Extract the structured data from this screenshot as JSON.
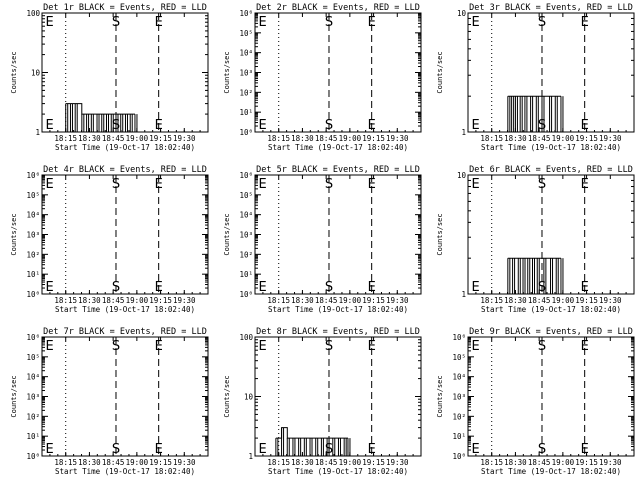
{
  "page": {
    "background": "#ffffff",
    "ink": "#000000"
  },
  "chart_data": [
    {
      "type": "line",
      "title": "Det 1r BLACK = Events, RED = LLD",
      "xlabel": "Start Time (19-Oct-17 18:02:40)",
      "ylabel": "Counts/sec",
      "ylog": true,
      "ylim": [
        1,
        100
      ],
      "yticklabels": [
        "1",
        "10",
        "100"
      ],
      "xticklabels": [
        "18:15",
        "18:30",
        "18:45",
        "19:00",
        "19:15",
        "19:30"
      ],
      "markers": [
        {
          "label": "E",
          "pos": "start"
        },
        {
          "label": "S",
          "pos": "mid"
        },
        {
          "label": "E",
          "pos": "end"
        }
      ],
      "series": [
        {
          "color": "#000000",
          "x": [
            18.25,
            18.3,
            18.35,
            18.42,
            18.47,
            18.52,
            18.58,
            18.63,
            18.68,
            18.73,
            18.78,
            18.83,
            18.88,
            18.93,
            18.98
          ],
          "y": [
            3,
            3,
            3,
            2,
            2,
            2,
            2,
            2,
            2,
            2,
            2,
            2,
            2,
            2,
            2
          ]
        }
      ]
    },
    {
      "type": "line",
      "title": "Det 2r BLACK = Events, RED = LLD",
      "xlabel": "Start Time (19-Oct-17 18:02:40)",
      "ylabel": "Counts/sec",
      "ylog": true,
      "ylim": [
        1,
        1000000
      ],
      "yticklabels": [
        "10⁰",
        "10¹",
        "10²",
        "10³",
        "10⁴",
        "10⁵",
        "10⁶"
      ],
      "xticklabels": [
        "18:15",
        "18:30",
        "18:45",
        "19:00",
        "19:15",
        "19:30"
      ],
      "markers": [
        {
          "label": "E",
          "pos": "start"
        },
        {
          "label": "S",
          "pos": "mid"
        },
        {
          "label": "E",
          "pos": "end"
        }
      ],
      "series": []
    },
    {
      "type": "line",
      "title": "Det 3r BLACK = Events, RED = LLD",
      "xlabel": "Start Time (19-Oct-17 18:02:40)",
      "ylabel": "Counts/sec",
      "ylog": true,
      "ylim": [
        1,
        10
      ],
      "yticklabels": [
        "1",
        "10"
      ],
      "xticklabels": [
        "18:15",
        "18:30",
        "18:45",
        "19:00",
        "19:15",
        "19:30"
      ],
      "markers": [
        {
          "label": "E",
          "pos": "start"
        },
        {
          "label": "S",
          "pos": "mid"
        },
        {
          "label": "E",
          "pos": "end"
        }
      ],
      "series": [
        {
          "color": "#000000",
          "x": [
            18.42,
            18.46,
            18.5,
            18.55,
            18.6,
            18.66,
            18.72,
            18.78,
            18.86,
            18.92,
            18.98
          ],
          "y": [
            2,
            2,
            2,
            2,
            2,
            2,
            2,
            2,
            2,
            2,
            2
          ]
        }
      ]
    },
    {
      "type": "line",
      "title": "Det 4r BLACK = Events, RED = LLD",
      "xlabel": "Start Time (19-Oct-17 18:02:40)",
      "ylabel": "Counts/sec",
      "ylog": true,
      "ylim": [
        1,
        1000000
      ],
      "yticklabels": [
        "10⁰",
        "10¹",
        "10²",
        "10³",
        "10⁴",
        "10⁵",
        "10⁶"
      ],
      "xticklabels": [
        "18:15",
        "18:30",
        "18:45",
        "19:00",
        "19:15",
        "19:30"
      ],
      "markers": [
        {
          "label": "E",
          "pos": "start"
        },
        {
          "label": "S",
          "pos": "mid"
        },
        {
          "label": "E",
          "pos": "end"
        }
      ],
      "series": []
    },
    {
      "type": "line",
      "title": "Det 5r BLACK = Events, RED = LLD",
      "xlabel": "Start Time (19-Oct-17 18:02:40)",
      "ylabel": "Counts/sec",
      "ylog": true,
      "ylim": [
        1,
        1000000
      ],
      "yticklabels": [
        "10⁰",
        "10¹",
        "10²",
        "10³",
        "10⁴",
        "10⁵",
        "10⁶"
      ],
      "xticklabels": [
        "18:15",
        "18:30",
        "18:45",
        "19:00",
        "19:15",
        "19:30"
      ],
      "markers": [
        {
          "label": "E",
          "pos": "start"
        },
        {
          "label": "S",
          "pos": "mid"
        },
        {
          "label": "E",
          "pos": "end"
        }
      ],
      "series": []
    },
    {
      "type": "line",
      "title": "Det 6r BLACK = Events, RED = LLD",
      "xlabel": "Start Time (19-Oct-17 18:02:40)",
      "ylabel": "Counts/sec",
      "ylog": true,
      "ylim": [
        1,
        10
      ],
      "yticklabels": [
        "1",
        "10"
      ],
      "xticklabels": [
        "18:15",
        "18:30",
        "18:45",
        "19:00",
        "19:15",
        "19:30"
      ],
      "markers": [
        {
          "label": "E",
          "pos": "start"
        },
        {
          "label": "S",
          "pos": "mid"
        },
        {
          "label": "E",
          "pos": "end"
        }
      ],
      "series": [
        {
          "color": "#000000",
          "x": [
            18.42,
            18.47,
            18.53,
            18.58,
            18.63,
            18.68,
            18.73,
            18.8,
            18.87,
            18.93,
            18.98
          ],
          "y": [
            2,
            2,
            2,
            2,
            2,
            2,
            2,
            2,
            2,
            2,
            2
          ]
        }
      ]
    },
    {
      "type": "line",
      "title": "Det 7r BLACK = Events, RED = LLD",
      "xlabel": "Start Time (19-Oct-17 18:02:40)",
      "ylabel": "Counts/sec",
      "ylog": true,
      "ylim": [
        1,
        1000000
      ],
      "yticklabels": [
        "10⁰",
        "10¹",
        "10²",
        "10³",
        "10⁴",
        "10⁵",
        "10⁶"
      ],
      "xticklabels": [
        "18:15",
        "18:30",
        "18:45",
        "19:00",
        "19:15",
        "19:30"
      ],
      "markers": [
        {
          "label": "E",
          "pos": "start"
        },
        {
          "label": "S",
          "pos": "mid"
        },
        {
          "label": "E",
          "pos": "end"
        }
      ],
      "series": []
    },
    {
      "type": "line",
      "title": "Det 8r BLACK = Events, RED = LLD",
      "xlabel": "Start Time (19-Oct-17 18:02:40)",
      "ylabel": "Counts/sec",
      "ylog": true,
      "ylim": [
        1,
        100
      ],
      "yticklabels": [
        "1",
        "10",
        "100"
      ],
      "xticklabels": [
        "18:15",
        "18:30",
        "18:45",
        "19:00",
        "19:15",
        "19:30"
      ],
      "markers": [
        {
          "label": "E",
          "pos": "start"
        },
        {
          "label": "S",
          "pos": "mid"
        },
        {
          "label": "E",
          "pos": "end"
        }
      ],
      "series": [
        {
          "color": "#000000",
          "x": [
            18.22,
            18.28,
            18.34,
            18.4,
            18.46,
            18.52,
            18.58,
            18.64,
            18.7,
            18.76,
            18.82,
            18.88,
            18.94,
            18.98
          ],
          "y": [
            2,
            3,
            2,
            2,
            2,
            2,
            2,
            2,
            2,
            2,
            2,
            2,
            2,
            2
          ]
        }
      ]
    },
    {
      "type": "line",
      "title": "Det 9r BLACK = Events, RED = LLD",
      "xlabel": "Start Time (19-Oct-17 18:02:40)",
      "ylabel": "Counts/sec",
      "ylog": true,
      "ylim": [
        1,
        1000000
      ],
      "yticklabels": [
        "10⁰",
        "10¹",
        "10²",
        "10³",
        "10⁴",
        "10⁵",
        "10⁶"
      ],
      "xticklabels": [
        "18:15",
        "18:30",
        "18:45",
        "19:00",
        "19:15",
        "19:30"
      ],
      "markers": [
        {
          "label": "E",
          "pos": "start"
        },
        {
          "label": "S",
          "pos": "mid"
        },
        {
          "label": "E",
          "pos": "end"
        }
      ],
      "series": []
    }
  ]
}
